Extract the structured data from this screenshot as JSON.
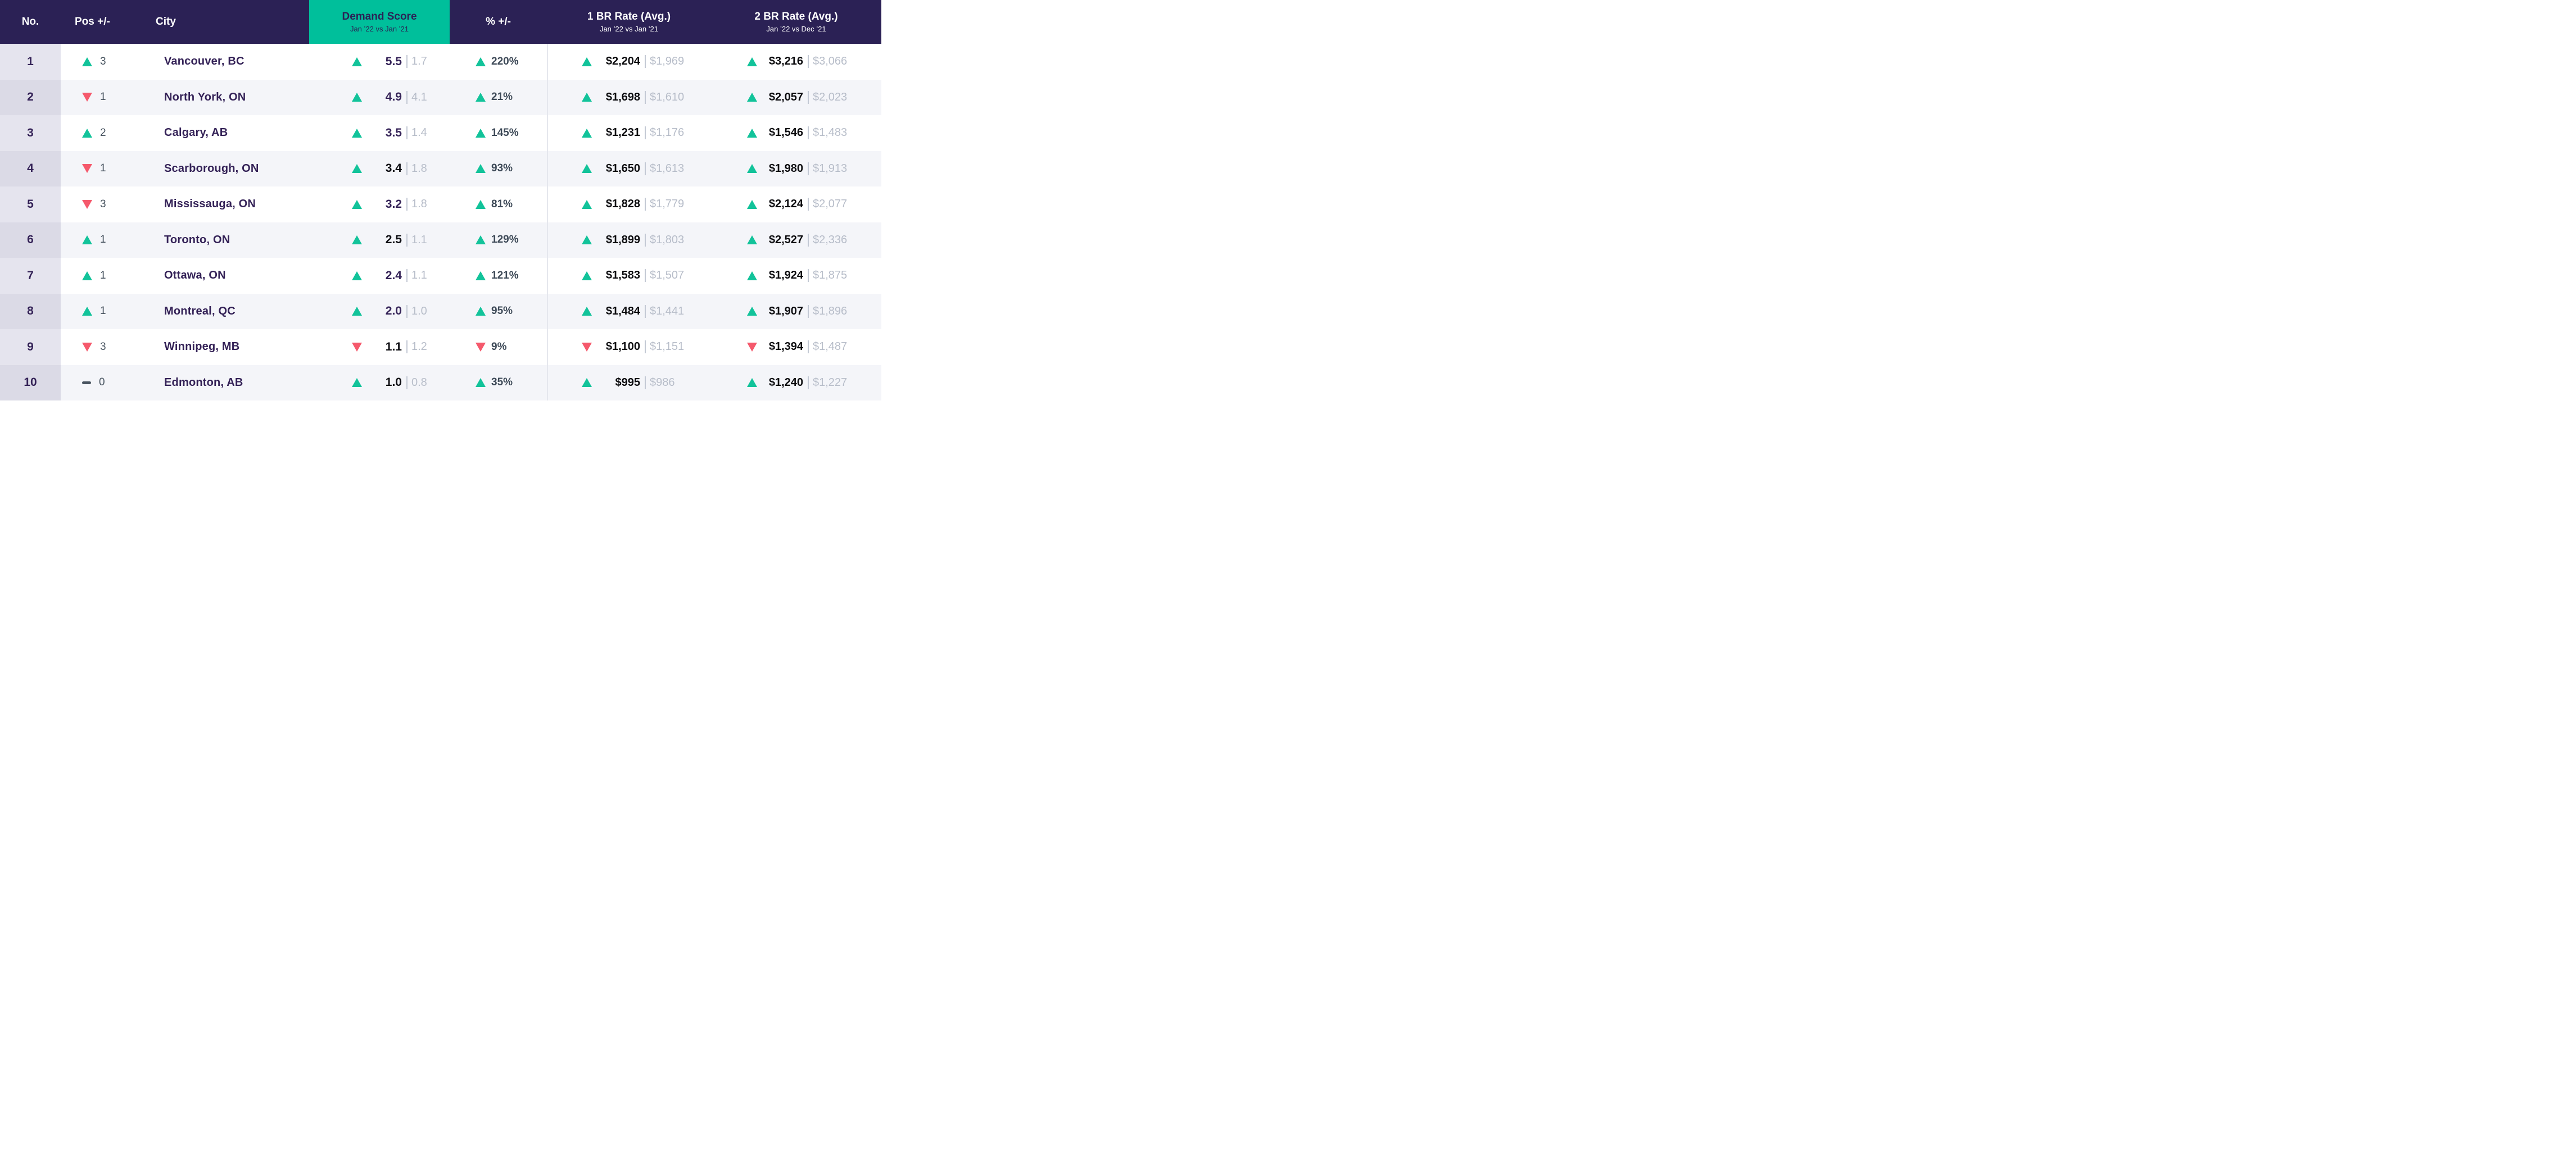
{
  "colors": {
    "header_bg": "#2B2155",
    "accent_teal": "#00BF9B",
    "up_green": "#12C39A",
    "down_red": "#F5596C",
    "purple_text": "#342257",
    "slate_text": "#47535F",
    "pct_text": "#3E4A58",
    "muted_text": "#B7BDC9",
    "row_alt_bg": "#F4F5F9",
    "rank_col_bg": "#E5E4EE",
    "rank_col_alt_bg": "#DBDAE6",
    "divider": "#E5E7ED"
  },
  "header": {
    "no": "No.",
    "pos": "Pos +/-",
    "city": "City",
    "demand_title": "Demand Score",
    "demand_subtitle": "Jan ’22 vs Jan ’21",
    "pct": "% +/-",
    "br1_title": "1 BR Rate (Avg.)",
    "br1_subtitle": "Jan ’22 vs Jan ’21",
    "br2_title": "2 BR Rate (Avg.)",
    "br2_subtitle": "Jan ’22 vs Dec ’21"
  },
  "rows": [
    {
      "no": "1",
      "pos_dir": "up",
      "pos": "3",
      "city": "Vancouver, BC",
      "demand_dir": "up",
      "demand_current": "5.5",
      "demand_previous": "1.7",
      "demand_variant": "purple",
      "pct_dir": "up",
      "pct": "220%",
      "br1_dir": "up",
      "br1_current": "$2,204",
      "br1_previous": "$1,969",
      "br2_dir": "up",
      "br2_current": "$3,216",
      "br2_previous": "$3,066"
    },
    {
      "no": "2",
      "pos_dir": "down",
      "pos": "1",
      "city": "North York, ON",
      "demand_dir": "up",
      "demand_current": "4.9",
      "demand_previous": "4.1",
      "demand_variant": "purple",
      "pct_dir": "up",
      "pct": "21%",
      "br1_dir": "up",
      "br1_current": "$1,698",
      "br1_previous": "$1,610",
      "br2_dir": "up",
      "br2_current": "$2,057",
      "br2_previous": "$2,023"
    },
    {
      "no": "3",
      "pos_dir": "up",
      "pos": "2",
      "city": "Calgary, AB",
      "demand_dir": "up",
      "demand_current": "3.5",
      "demand_previous": "1.4",
      "demand_variant": "purple",
      "pct_dir": "up",
      "pct": "145%",
      "br1_dir": "up",
      "br1_current": "$1,231",
      "br1_previous": "$1,176",
      "br2_dir": "up",
      "br2_current": "$1,546",
      "br2_previous": "$1,483"
    },
    {
      "no": "4",
      "pos_dir": "down",
      "pos": "1",
      "city": "Scarborough, ON",
      "demand_dir": "up",
      "demand_current": "3.4",
      "demand_previous": "1.8",
      "demand_variant": "dark",
      "pct_dir": "up",
      "pct": "93%",
      "br1_dir": "up",
      "br1_current": "$1,650",
      "br1_previous": "$1,613",
      "br2_dir": "up",
      "br2_current": "$1,980",
      "br2_previous": "$1,913"
    },
    {
      "no": "5",
      "pos_dir": "down",
      "pos": "3",
      "city": "Mississauga, ON",
      "demand_dir": "up",
      "demand_current": "3.2",
      "demand_previous": "1.8",
      "demand_variant": "purple",
      "pct_dir": "up",
      "pct": "81%",
      "br1_dir": "up",
      "br1_current": "$1,828",
      "br1_previous": "$1,779",
      "br2_dir": "up",
      "br2_current": "$2,124",
      "br2_previous": "$2,077"
    },
    {
      "no": "6",
      "pos_dir": "up",
      "pos": "1",
      "city": "Toronto, ON",
      "demand_dir": "up",
      "demand_current": "2.5",
      "demand_previous": "1.1",
      "demand_variant": "dark",
      "pct_dir": "up",
      "pct": "129%",
      "br1_dir": "up",
      "br1_current": "$1,899",
      "br1_previous": "$1,803",
      "br2_dir": "up",
      "br2_current": "$2,527",
      "br2_previous": "$2,336"
    },
    {
      "no": "7",
      "pos_dir": "up",
      "pos": "1",
      "city": "Ottawa, ON",
      "demand_dir": "up",
      "demand_current": "2.4",
      "demand_previous": "1.1",
      "demand_variant": "purple",
      "pct_dir": "up",
      "pct": "121%",
      "br1_dir": "up",
      "br1_current": "$1,583",
      "br1_previous": "$1,507",
      "br2_dir": "up",
      "br2_current": "$1,924",
      "br2_previous": "$1,875"
    },
    {
      "no": "8",
      "pos_dir": "up",
      "pos": "1",
      "city": "Montreal, QC",
      "demand_dir": "up",
      "demand_current": "2.0",
      "demand_previous": "1.0",
      "demand_variant": "purple",
      "pct_dir": "up",
      "pct": "95%",
      "br1_dir": "up",
      "br1_current": "$1,484",
      "br1_previous": "$1,441",
      "br2_dir": "up",
      "br2_current": "$1,907",
      "br2_previous": "$1,896"
    },
    {
      "no": "9",
      "pos_dir": "down",
      "pos": "3",
      "city": "Winnipeg, MB",
      "demand_dir": "down",
      "demand_current": "1.1",
      "demand_previous": "1.2",
      "demand_variant": "dark",
      "pct_dir": "down",
      "pct": "9%",
      "br1_dir": "down",
      "br1_current": "$1,100",
      "br1_previous": "$1,151",
      "br2_dir": "down",
      "br2_current": "$1,394",
      "br2_previous": "$1,487"
    },
    {
      "no": "10",
      "pos_dir": "flat",
      "pos": "0",
      "city": "Edmonton, AB",
      "demand_dir": "up",
      "demand_current": "1.0",
      "demand_previous": "0.8",
      "demand_variant": "dark",
      "pct_dir": "up",
      "pct": "35%",
      "br1_dir": "up",
      "br1_current": "$995",
      "br1_previous": "$986",
      "br2_dir": "up",
      "br2_current": "$1,240",
      "br2_previous": "$1,227"
    }
  ],
  "chart_data": {
    "type": "table",
    "columns": [
      "No.",
      "Pos +/-",
      "City",
      "Demand Score Jan ’22",
      "Demand Score Jan ’21",
      "% +/-",
      "1 BR Rate (Avg.) Jan ’22",
      "1 BR Rate (Avg.) Jan ’21",
      "2 BR Rate (Avg.) Jan ’22",
      "2 BR Rate (Avg.) Dec ’21"
    ],
    "rows": [
      [
        1,
        "+3",
        "Vancouver, BC",
        5.5,
        1.7,
        "+220%",
        2204,
        1969,
        3216,
        3066
      ],
      [
        2,
        "-1",
        "North York, ON",
        4.9,
        4.1,
        "+21%",
        1698,
        1610,
        2057,
        2023
      ],
      [
        3,
        "+2",
        "Calgary, AB",
        3.5,
        1.4,
        "+145%",
        1231,
        1176,
        1546,
        1483
      ],
      [
        4,
        "-1",
        "Scarborough, ON",
        3.4,
        1.8,
        "+93%",
        1650,
        1613,
        1980,
        1913
      ],
      [
        5,
        "-3",
        "Mississauga, ON",
        3.2,
        1.8,
        "+81%",
        1828,
        1779,
        2124,
        2077
      ],
      [
        6,
        "+1",
        "Toronto, ON",
        2.5,
        1.1,
        "+129%",
        1899,
        1803,
        2527,
        2336
      ],
      [
        7,
        "+1",
        "Ottawa, ON",
        2.4,
        1.1,
        "+121%",
        1583,
        1507,
        1924,
        1875
      ],
      [
        8,
        "+1",
        "Montreal, QC",
        2.0,
        1.0,
        "+95%",
        1484,
        1441,
        1907,
        1896
      ],
      [
        9,
        "-3",
        "Winnipeg, MB",
        1.1,
        1.2,
        "-9%",
        1100,
        1151,
        1394,
        1487
      ],
      [
        10,
        "0",
        "Edmonton, AB",
        1.0,
        0.8,
        "+35%",
        995,
        986,
        1240,
        1227
      ]
    ]
  }
}
